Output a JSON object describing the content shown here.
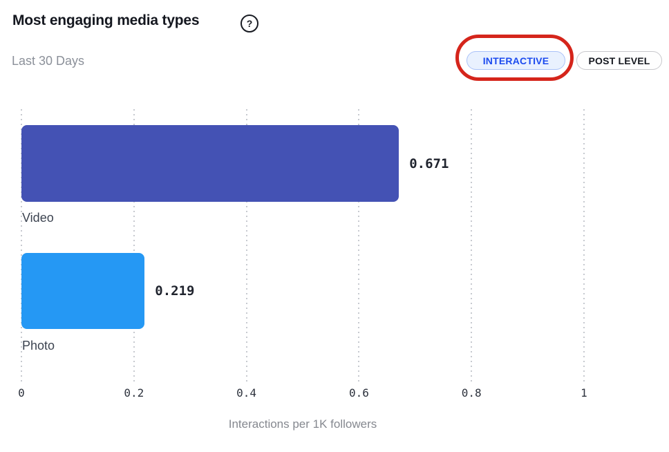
{
  "header": {
    "title": "Most engaging media types",
    "help_icon": {
      "name": "question-mark-circle-icon",
      "glyph": "?"
    },
    "subtitle": "Last 30 Days"
  },
  "toggle": {
    "options": [
      {
        "label": "INTERACTIVE",
        "active": true
      },
      {
        "label": "POST LEVEL",
        "active": false
      }
    ],
    "active_text_color": "#1c4bef",
    "active_bg_color": "#e9f1fe",
    "active_border_color": "#a9c1f8",
    "inactive_text_color": "#15181f",
    "inactive_border_color": "#c7c7cb"
  },
  "annotation": {
    "type": "red-rounded-circle",
    "target": "INTERACTIVE",
    "color": "#d5251b"
  },
  "chart_data": {
    "type": "bar",
    "orientation": "horizontal",
    "categories": [
      "Video",
      "Photo"
    ],
    "values": [
      0.671,
      0.219
    ],
    "value_labels": [
      "0.671",
      "0.219"
    ],
    "bar_colors": [
      "#4452b4",
      "#2598f4"
    ],
    "xlabel": "Interactions per 1K followers",
    "xlim": [
      0,
      1
    ],
    "xticks": [
      0,
      0.2,
      0.4,
      0.6,
      0.8,
      1
    ],
    "xtick_labels": [
      "0",
      "0.2",
      "0.4",
      "0.6",
      "0.8",
      "1"
    ],
    "grid": {
      "style": "dotted",
      "axis": "x",
      "color": "#c6c9cf"
    },
    "legend": "none"
  }
}
